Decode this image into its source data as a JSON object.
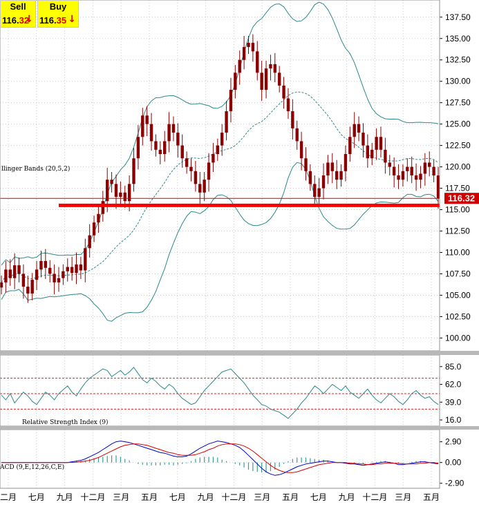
{
  "quotes": {
    "sell_label": "Sell",
    "sell_int": "116.",
    "sell_dec": "32",
    "buy_label": "Buy",
    "buy_int": "116.",
    "buy_dec": "35",
    "down_arrow": "↓"
  },
  "colors": {
    "candle": "#8b0000",
    "band": "#2a8a8a",
    "support_line": "#ff0000",
    "price_tag": "#d00000",
    "macd_line": "#0000cc",
    "signal_line": "#dd0000",
    "grid": "#c9c9c9",
    "panel_border": "#909090",
    "ref_dash": "#dd2222"
  },
  "chart_data": [
    {
      "type": "candlestick",
      "panel": "price",
      "indicator_label": "llinger Bands (20,5,2)",
      "ylim": [
        98.5,
        139.5
      ],
      "yticks": [
        "100.00",
        "102.50",
        "105.00",
        "107.50",
        "110.00",
        "112.50",
        "115.00",
        "117.50",
        "120.00",
        "122.50",
        "125.00",
        "127.50",
        "130.00",
        "132.50",
        "135.00",
        "137.50"
      ],
      "xticks": [
        "二月",
        "七月",
        "九月",
        "十二月",
        "三月",
        "五月",
        "七月",
        "九月",
        "十二月",
        "三月",
        "五月",
        "七月",
        "九月",
        "十二月",
        "三月",
        "五月"
      ],
      "current_price": 116.32,
      "current_price_label": "116.32",
      "horizontal_lines": [
        {
          "value": 115.5,
          "style": "thick",
          "color": "#ff0000"
        },
        {
          "value": 116.32,
          "style": "thin",
          "color": "#cc0000"
        }
      ],
      "close_series": [
        106.5,
        108.0,
        107.0,
        108.5,
        107.5,
        106.0,
        105.2,
        106.8,
        108.0,
        109.0,
        108.2,
        107.5,
        106.5,
        107.0,
        107.8,
        108.3,
        107.6,
        108.6,
        107.9,
        110.5,
        112.0,
        113.5,
        114.5,
        116.0,
        118.5,
        118.0,
        116.5,
        117.0,
        116.0,
        118.0,
        121.0,
        123.5,
        126.0,
        125.0,
        123.0,
        122.0,
        121.5,
        123.0,
        125.0,
        124.0,
        122.5,
        121.0,
        120.0,
        119.5,
        118.0,
        117.0,
        118.5,
        120.5,
        121.5,
        122.5,
        124.0,
        126.5,
        129.0,
        131.0,
        132.5,
        134.0,
        134.5,
        133.5,
        131.0,
        129.0,
        131.5,
        132.0,
        131.0,
        129.5,
        128.0,
        126.5,
        124.5,
        123.0,
        121.0,
        119.5,
        118.0,
        116.5,
        117.5,
        119.0,
        120.5,
        119.5,
        118.5,
        119.5,
        121.5,
        123.5,
        125.0,
        124.0,
        122.5,
        121.0,
        122.0,
        123.5,
        122.0,
        120.5,
        120.0,
        119.0,
        118.5,
        119.5,
        120.0,
        119.0,
        118.5,
        119.2,
        120.5,
        120.0,
        119.0,
        116.32
      ],
      "bollinger": {
        "period": 20,
        "deviations": 2
      }
    },
    {
      "type": "line",
      "panel": "rsi",
      "indicator_label": "Relative Strength Index (9)",
      "ylim": [
        8,
        100
      ],
      "yticks": [
        "85.0",
        "62.0",
        "39.0",
        "16.0"
      ],
      "reference_lines": [
        70,
        50,
        30
      ],
      "series": [
        {
          "values": [
            48,
            42,
            50,
            38,
            45,
            52,
            47,
            40,
            36,
            44,
            52,
            48,
            42,
            50,
            55,
            60,
            52,
            47,
            56,
            64,
            70,
            74,
            78,
            82,
            80,
            72,
            76,
            80,
            74,
            78,
            84,
            76,
            68,
            64,
            70,
            66,
            60,
            56,
            62,
            58,
            50,
            44,
            40,
            36,
            38,
            46,
            54,
            60,
            66,
            72,
            78,
            80,
            82,
            76,
            70,
            64,
            56,
            48,
            42,
            36,
            34,
            30,
            28,
            26,
            22,
            18,
            24,
            30,
            38,
            44,
            52,
            60,
            56,
            50,
            56,
            62,
            58,
            54,
            60,
            52,
            48,
            44,
            50,
            56,
            48,
            42,
            38,
            44,
            50,
            46,
            40,
            36,
            42,
            50,
            54,
            48,
            44,
            46,
            40,
            36
          ]
        }
      ]
    },
    {
      "type": "line",
      "panel": "macd",
      "indicator_label": "ACD (9,E,12,26,C,E)",
      "ylim": [
        -3.6,
        4.6
      ],
      "yticks": [
        "2.90",
        "0.00",
        "-2.90"
      ],
      "series": [
        {
          "name": "macd",
          "values": [
            0,
            0,
            0,
            0,
            0,
            0,
            0,
            0,
            0,
            0,
            0,
            0,
            0,
            0,
            0,
            0,
            0.1,
            0.2,
            0.3,
            0.5,
            0.8,
            1.1,
            1.4,
            1.8,
            2.2,
            2.6,
            2.9,
            3.0,
            2.9,
            2.8,
            2.6,
            2.4,
            2.2,
            2.0,
            1.8,
            1.6,
            1.4,
            1.3,
            1.1,
            0.9,
            0.8,
            0.8,
            0.9,
            1.2,
            1.6,
            2.0,
            2.3,
            2.6,
            2.8,
            3.0,
            2.9,
            2.8,
            2.6,
            2.4,
            2.1,
            1.6,
            1.0,
            0.4,
            -0.2,
            -0.8,
            -1.3,
            -1.6,
            -1.8,
            -1.7,
            -1.5,
            -1.2,
            -0.9,
            -0.6,
            -0.4,
            -0.2,
            -0.1,
            0.0,
            0.1,
            0.2,
            0.2,
            0.1,
            0.0,
            0.0,
            -0.1,
            -0.2,
            -0.2,
            -0.3,
            -0.4,
            -0.3,
            -0.2,
            -0.1,
            0.0,
            0.1,
            0.0,
            -0.1,
            -0.3,
            -0.3,
            -0.2,
            -0.1,
            0.0,
            0.1,
            0.1,
            0.0,
            -0.1,
            -0.2
          ]
        },
        {
          "name": "signal",
          "values": [
            0,
            0,
            0,
            0,
            0,
            0,
            0,
            0,
            0,
            0,
            0,
            0,
            0,
            0,
            0,
            0,
            0.02,
            0.05,
            0.1,
            0.2,
            0.3,
            0.5,
            0.7,
            1.0,
            1.3,
            1.6,
            1.9,
            2.2,
            2.4,
            2.5,
            2.6,
            2.6,
            2.5,
            2.4,
            2.2,
            2.0,
            1.8,
            1.6,
            1.4,
            1.3,
            1.1,
            1.0,
            1.0,
            1.0,
            1.1,
            1.3,
            1.5,
            1.8,
            2.0,
            2.3,
            2.5,
            2.6,
            2.6,
            2.6,
            2.5,
            2.3,
            2.0,
            1.6,
            1.1,
            0.6,
            0.1,
            -0.4,
            -0.8,
            -1.1,
            -1.3,
            -1.4,
            -1.4,
            -1.3,
            -1.1,
            -0.9,
            -0.7,
            -0.5,
            -0.3,
            -0.2,
            -0.1,
            0.0,
            0.0,
            0.0,
            0.0,
            -0.1,
            -0.1,
            -0.2,
            -0.2,
            -0.3,
            -0.3,
            -0.2,
            -0.2,
            -0.1,
            -0.1,
            -0.1,
            -0.1,
            -0.2,
            -0.2,
            -0.2,
            -0.2,
            -0.1,
            -0.1,
            0.0,
            0.0,
            -0.1
          ]
        }
      ]
    }
  ]
}
